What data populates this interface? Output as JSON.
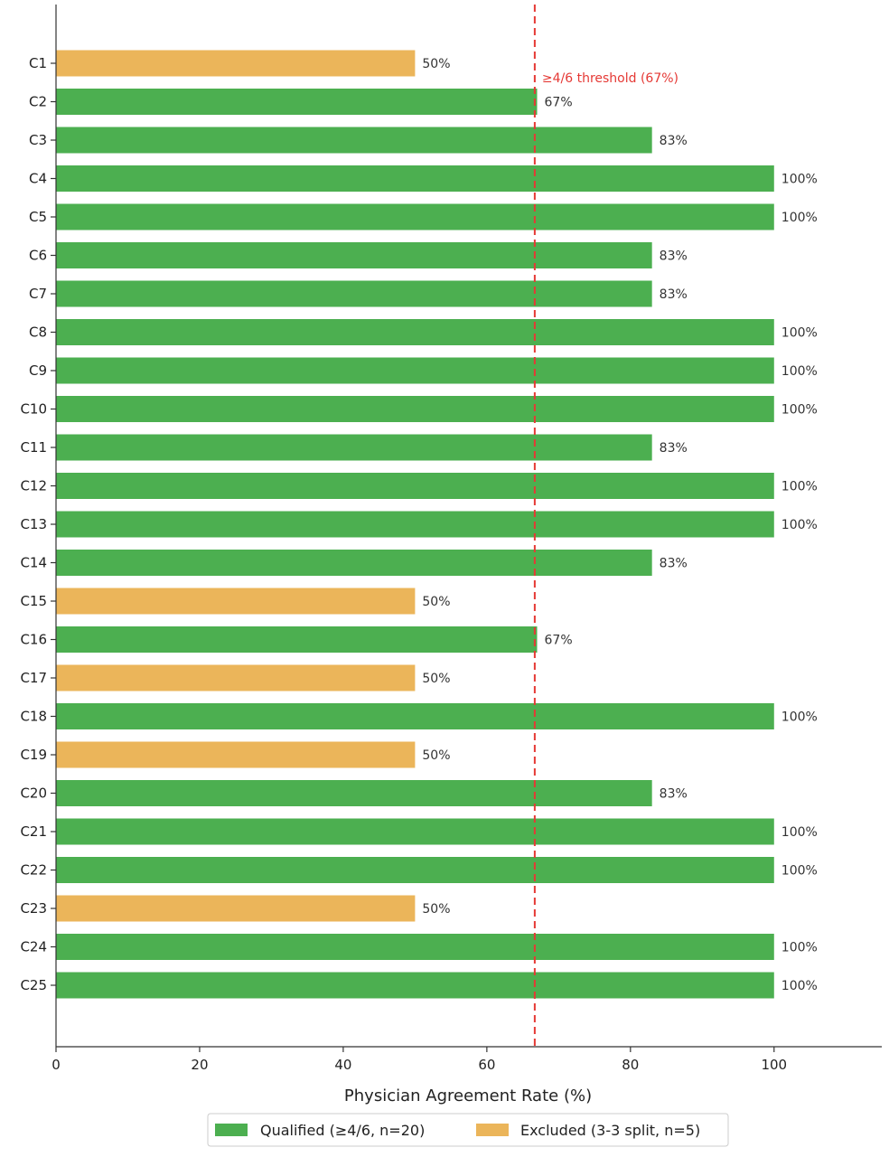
{
  "chart_data": {
    "type": "bar",
    "orientation": "horizontal",
    "categories": [
      "C1",
      "C2",
      "C3",
      "C4",
      "C5",
      "C6",
      "C7",
      "C8",
      "C9",
      "C10",
      "C11",
      "C12",
      "C13",
      "C14",
      "C15",
      "C16",
      "C17",
      "C18",
      "C19",
      "C20",
      "C21",
      "C22",
      "C23",
      "C24",
      "C25"
    ],
    "values": [
      50,
      67,
      83,
      100,
      100,
      83,
      83,
      100,
      100,
      100,
      83,
      100,
      100,
      83,
      50,
      67,
      50,
      100,
      50,
      83,
      100,
      100,
      50,
      100,
      100
    ],
    "value_labels": [
      "50%",
      "67%",
      "83%",
      "100%",
      "100%",
      "83%",
      "83%",
      "100%",
      "100%",
      "100%",
      "83%",
      "100%",
      "100%",
      "83%",
      "50%",
      "67%",
      "50%",
      "100%",
      "50%",
      "83%",
      "100%",
      "100%",
      "50%",
      "100%",
      "100%"
    ],
    "groups": [
      "excluded",
      "qualified",
      "qualified",
      "qualified",
      "qualified",
      "qualified",
      "qualified",
      "qualified",
      "qualified",
      "qualified",
      "qualified",
      "qualified",
      "qualified",
      "qualified",
      "excluded",
      "qualified",
      "excluded",
      "qualified",
      "excluded",
      "qualified",
      "qualified",
      "qualified",
      "excluded",
      "qualified",
      "qualified"
    ],
    "series": [
      {
        "key": "qualified",
        "name": "Qualified (≥4/6, n=20)",
        "color": "#4caf50"
      },
      {
        "key": "excluded",
        "name": "Excluded (3-3 split, n=5)",
        "color": "#ebb55a"
      }
    ],
    "xlabel": "Physician Agreement Rate (%)",
    "ylabel": "",
    "title": "",
    "xlim": [
      0,
      115
    ],
    "xticks": [
      0,
      20,
      40,
      60,
      80,
      100
    ],
    "xtick_labels": [
      "0",
      "20",
      "40",
      "60",
      "80",
      "100"
    ],
    "threshold": {
      "value": 66.67,
      "label": "≥4/6 threshold (67%)",
      "color": "#e53935",
      "style": "dashed"
    },
    "legend_placement": "bottom-center",
    "grid": false
  }
}
